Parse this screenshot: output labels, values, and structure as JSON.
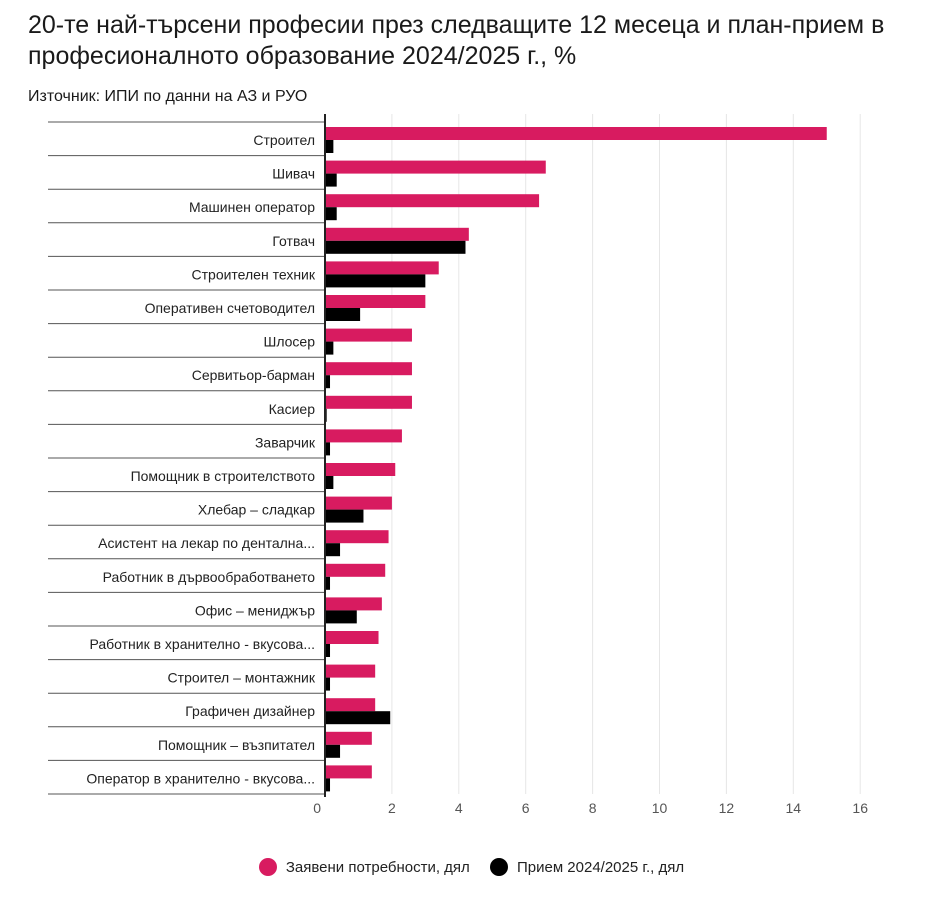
{
  "title": "20-те най-търсени професии през следващите 12 месеца и план-прием в професионалното образование 2024/2025 г., %",
  "source": "Източник: ИПИ по данни на АЗ и РУО",
  "colors": {
    "demand": "#d81b60",
    "admission": "#000000",
    "grid": "#e6e6e6",
    "separator": "#555555"
  },
  "legend": [
    {
      "label": "Заявени потребности, дял",
      "color": "#d81b60"
    },
    {
      "label": "Прием 2024/2025 г., дял",
      "color": "#000000"
    }
  ],
  "chart_data": {
    "type": "bar",
    "orientation": "horizontal",
    "title": "20-те най-търсени професии през следващите 12 месеца и план-прием в професионалното образование 2024/2025 г., %",
    "xlim": [
      0,
      16
    ],
    "xticks": [
      0,
      2,
      4,
      6,
      8,
      10,
      12,
      14,
      16
    ],
    "grid": true,
    "legend_position": "bottom",
    "categories": [
      "Строител",
      "Шивач",
      "Машинен оператор",
      "Готвач",
      "Строителен техник",
      "Оперативен счетоводител",
      "Шлосер",
      "Сервитьор-барман",
      "Касиер",
      "Заварчик",
      "Помощник в строителството",
      "Хлебар – сладкар",
      "Асистент на лекар по дентална...",
      "Работник в дървообработването",
      "Офис – мениджър",
      "Работник в хранително - вкусова...",
      "Строител – монтажник",
      "Графичен дизайнер",
      "Помощник – възпитател",
      "Оператор в хранително - вкусова..."
    ],
    "series": [
      {
        "name": "Заявени потребности, дял",
        "color": "#d81b60",
        "values": [
          15.0,
          6.6,
          6.4,
          4.3,
          3.4,
          3.0,
          2.6,
          2.6,
          2.6,
          2.3,
          2.1,
          2.0,
          1.9,
          1.8,
          1.7,
          1.6,
          1.5,
          1.5,
          1.4,
          1.4
        ]
      },
      {
        "name": "Прием 2024/2025 г., дял",
        "color": "#000000",
        "values": [
          0.25,
          0.35,
          0.35,
          4.2,
          3.0,
          1.05,
          0.25,
          0.15,
          0.05,
          0.15,
          0.25,
          1.15,
          0.45,
          0.15,
          0.95,
          0.15,
          0.15,
          1.95,
          0.45,
          0.15
        ]
      }
    ]
  }
}
